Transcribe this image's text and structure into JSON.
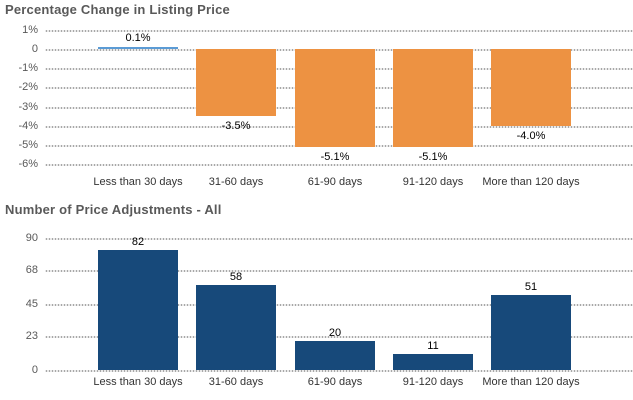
{
  "colors": {
    "background": "#ffffff",
    "grid": "#a8a8a8",
    "title_text": "#595959",
    "y_tick_text": "#595959",
    "category_text": "#333333",
    "value_label_text": "#000000",
    "positive_bar_blue": "#5b9bd5",
    "negative_bar_orange": "#ed9242",
    "count_bar_navy": "#17497a"
  },
  "chart_data": [
    {
      "type": "bar",
      "title": "Percentage Change in Listing Price",
      "categories": [
        "Less than 30 days",
        "31-60 days",
        "61-90 days",
        "91-120 days",
        "More than 120 days"
      ],
      "values": [
        0.1,
        -3.5,
        -5.1,
        -5.1,
        -4.0
      ],
      "value_labels": [
        "0.1%",
        "-3.5%",
        "-5.1%",
        "-5.1%",
        "-4.0%"
      ],
      "bar_colors": [
        "#5b9bd5",
        "#ed9242",
        "#ed9242",
        "#ed9242",
        "#ed9242"
      ],
      "ylim": [
        -6,
        1
      ],
      "y_ticks": [
        {
          "v": 1,
          "label": "1%"
        },
        {
          "v": 0,
          "label": "0"
        },
        {
          "v": -1,
          "label": "-1%"
        },
        {
          "v": -2,
          "label": "-2%"
        },
        {
          "v": -3,
          "label": "-3%"
        },
        {
          "v": -4,
          "label": "-4%"
        },
        {
          "v": -5,
          "label": "-5%"
        },
        {
          "v": -6,
          "label": "-6%"
        }
      ],
      "xlabel": "",
      "ylabel": "",
      "grid": "dotted horizontal",
      "legend": "none"
    },
    {
      "type": "bar",
      "title": "Number of Price Adjustments - All",
      "categories": [
        "Less than 30 days",
        "31-60 days",
        "61-90 days",
        "91-120 days",
        "More than 120 days"
      ],
      "values": [
        82,
        58,
        20,
        11,
        51
      ],
      "value_labels": [
        "82",
        "58",
        "20",
        "11",
        "51"
      ],
      "bar_colors": [
        "#17497a",
        "#17497a",
        "#17497a",
        "#17497a",
        "#17497a"
      ],
      "ylim": [
        0,
        90
      ],
      "y_ticks": [
        {
          "v": 90,
          "label": "90"
        },
        {
          "v": 68,
          "label": "68"
        },
        {
          "v": 45,
          "label": "45"
        },
        {
          "v": 23,
          "label": "23"
        },
        {
          "v": 0,
          "label": "0"
        }
      ],
      "xlabel": "",
      "ylabel": "",
      "grid": "dotted horizontal",
      "legend": "none"
    }
  ]
}
